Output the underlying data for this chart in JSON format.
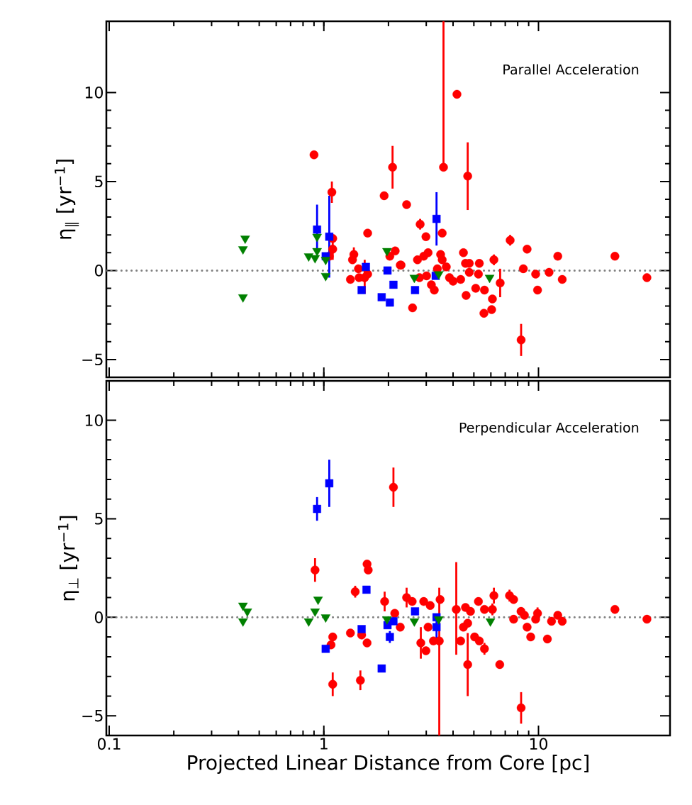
{
  "chart_data": [
    {
      "type": "scatter",
      "ylabel": "η$_{∥}$ [yr$^{−1}$]",
      "annotations": [
        "Parallel Acceleration"
      ],
      "log": "x",
      "tick_labels": "y",
      "xlim": [
        0.097,
        41
      ],
      "ylim": [
        -6,
        14
      ],
      "xticks": [
        0.1,
        1,
        10
      ],
      "yticks": [
        {
          "value": -5,
          "label": "−5"
        },
        0,
        5,
        10
      ],
      "ref_lines": [
        {
          "axis": "y",
          "value": 0,
          "color": "#808080",
          "line_style": "dotted"
        }
      ],
      "series": [
        {
          "color": "#ff0000",
          "marker": "circle",
          "x": [
            0.9,
            1.09,
            2.09,
            3.61,
            4.17,
            4.68,
            1.91,
            2.43,
            1.6,
            2.81,
            2.99,
            3.56,
            7.38,
            8.85,
            22.7,
            32,
            12.3,
            12.9,
            9.9,
            9.7,
            11.2,
            8.5,
            6.63,
            6.2,
            6.1,
            6.05,
            5.57,
            5.3,
            5.25,
            5.1,
            5.6,
            4.76,
            4.57,
            4.76,
            4.47,
            4.6,
            4.34,
            4.0,
            3.85,
            3.72,
            3.56,
            3.5,
            3.38,
            3.27,
            3.17,
            3.06,
            2.92,
            2.73,
            2.29,
            2.59,
            2.79,
            3.01,
            8.3,
            1.1,
            1.1,
            1.06,
            1.38,
            1.36,
            1.45,
            1.55,
            1.46,
            1.33,
            1.6,
            2.15,
            2.03,
            2.27
          ],
          "values": [
            6.5,
            4.4,
            5.8,
            5.8,
            9.9,
            5.3,
            4.2,
            3.7,
            2.1,
            2.6,
            1.9,
            2.1,
            1.7,
            1.2,
            0.8,
            -0.4,
            0.8,
            -0.5,
            -1.1,
            -0.2,
            -0.1,
            0.1,
            -0.7,
            0.6,
            -1.6,
            -2.2,
            -2.4,
            0.4,
            -0.2,
            -1.0,
            -1.1,
            0.4,
            0.4,
            -0.1,
            1.0,
            -1.4,
            -0.5,
            -0.6,
            -0.4,
            0.2,
            0.6,
            0.9,
            0.1,
            -1.1,
            -0.8,
            1.0,
            0.8,
            0.6,
            0.3,
            -2.1,
            -0.4,
            -0.3,
            -3.9,
            1.8,
            1.2,
            0.8,
            0.9,
            0.6,
            0.1,
            -0.4,
            -0.4,
            -0.5,
            -0.2,
            1.1,
            0.8,
            0.3
          ],
          "errors": [
            null,
            0.6,
            1.2,
            [
              5.8,
              14
            ],
            null,
            [
              3.4,
              7.2
            ],
            null,
            null,
            null,
            0.3,
            null,
            null,
            0.3,
            null,
            null,
            null,
            null,
            null,
            null,
            null,
            null,
            null,
            0.8,
            0.3,
            null,
            null,
            null,
            null,
            null,
            null,
            null,
            null,
            null,
            null,
            null,
            null,
            null,
            null,
            null,
            null,
            null,
            null,
            null,
            null,
            null,
            null,
            null,
            null,
            null,
            null,
            null,
            null,
            0.9,
            null,
            0.6,
            null,
            0.4,
            null,
            null,
            [
              -1.3,
              0.6
            ],
            null,
            null,
            null,
            null,
            null,
            null
          ]
        },
        {
          "color": "#0000ff",
          "marker": "square",
          "x": [
            0.93,
            1.06,
            1.02,
            1.57,
            1.5,
            1.98,
            2.11,
            1.86,
            2.03,
            2.66,
            3.35,
            3.32
          ],
          "values": [
            2.3,
            1.9,
            0.8,
            0.2,
            -1.1,
            0.0,
            -0.8,
            -1.5,
            -1.8,
            -1.1,
            2.9,
            -0.3
          ],
          "errors": [
            1.4,
            2.3,
            null,
            null,
            null,
            null,
            null,
            null,
            null,
            null,
            1.5,
            null
          ]
        },
        {
          "color": "#008000",
          "marker": "triangle",
          "x": [
            0.43,
            0.42,
            0.42,
            0.85,
            0.91,
            0.93,
            0.93,
            1.02,
            1.02,
            1.97,
            2.64,
            3.43,
            5.92
          ],
          "values": [
            1.8,
            1.2,
            -1.5,
            0.8,
            0.7,
            1.9,
            1.1,
            0.6,
            -0.3,
            1.1,
            -0.4,
            -0.2,
            -0.4
          ]
        }
      ]
    },
    {
      "type": "scatter",
      "xlabel": "Projected Linear Distance from Core [pc]",
      "ylabel": "η$_{⊥}$ [yr$^{−1}$]",
      "annotations": [
        "Perpendicular Acceleration"
      ],
      "log": "x",
      "xlim": [
        0.097,
        41
      ],
      "ylim": [
        -6,
        12
      ],
      "xticks": [
        0.1,
        1,
        10
      ],
      "yticks": [
        {
          "value": -5,
          "label": "−5"
        },
        0,
        5,
        10
      ],
      "ref_lines": [
        {
          "axis": "y",
          "value": 0,
          "color": "#808080",
          "line_style": "dotted"
        }
      ],
      "series": [
        {
          "color": "#ff0000",
          "marker": "circle",
          "x": [
            2.11,
            0.91,
            1.59,
            1.61,
            1.4,
            1.92,
            2.43,
            2.58,
            2.92,
            3.48,
            2.14,
            2.27,
            1.1,
            1.08,
            1.33,
            1.5,
            1.59,
            3.06,
            2.83,
            2.99,
            3.45,
            1.1,
            1.48,
            3.24,
            4.14,
            4.57,
            4.82,
            4.68,
            4.47,
            4.34,
            4.68,
            5.04,
            5.3,
            5.6,
            5.25,
            5.6,
            6.1,
            6.2,
            6.6,
            7.33,
            7.66,
            8.29,
            8.6,
            7.66,
            8.85,
            9.2,
            9.9,
            9.7,
            11.0,
            11.5,
            12.3,
            12.9,
            22.7,
            32,
            8.3,
            3.13
          ],
          "values": [
            6.6,
            2.4,
            2.7,
            2.4,
            1.3,
            0.8,
            1.0,
            0.8,
            0.8,
            0.9,
            0.2,
            -0.5,
            -1.0,
            -1.4,
            -0.8,
            -0.9,
            -1.3,
            -0.5,
            -1.3,
            -1.7,
            -1.2,
            -3.4,
            -3.2,
            -1.2,
            0.4,
            0.5,
            0.3,
            -0.3,
            -0.5,
            -1.2,
            -2.4,
            -1.0,
            -1.2,
            -1.6,
            0.8,
            0.4,
            0.4,
            1.1,
            -2.4,
            1.1,
            0.9,
            0.3,
            0.1,
            -0.1,
            -0.5,
            -1.0,
            0.2,
            -0.1,
            -1.1,
            -0.2,
            0.1,
            -0.2,
            0.4,
            -0.1,
            -4.6,
            0.6
          ],
          "errors": [
            1.0,
            0.6,
            null,
            null,
            0.3,
            0.5,
            0.5,
            null,
            null,
            null,
            null,
            null,
            null,
            null,
            null,
            null,
            null,
            null,
            0.8,
            null,
            [
              -6,
              1.5
            ],
            0.6,
            0.5,
            null,
            [
              -1.9,
              2.8
            ],
            null,
            null,
            null,
            null,
            null,
            1.6,
            null,
            null,
            0.3,
            null,
            null,
            0.3,
            0.4,
            null,
            0.3,
            null,
            null,
            null,
            null,
            null,
            null,
            0.3,
            null,
            null,
            null,
            null,
            null,
            null,
            null,
            0.8,
            null
          ]
        },
        {
          "color": "#0000ff",
          "marker": "square",
          "x": [
            1.06,
            0.93,
            1.58,
            1.5,
            1.02,
            1.86,
            1.98,
            2.11,
            2.03,
            2.66,
            3.35,
            3.35
          ],
          "values": [
            6.8,
            5.5,
            1.4,
            -0.6,
            -1.6,
            -2.6,
            -0.4,
            -0.2,
            -1.0,
            0.3,
            0.0,
            -0.5
          ],
          "errors": [
            1.2,
            0.6,
            null,
            null,
            null,
            null,
            null,
            null,
            0.3,
            null,
            null,
            0.6
          ]
        },
        {
          "color": "#008000",
          "marker": "triangle",
          "x": [
            0.42,
            0.44,
            0.42,
            0.94,
            0.91,
            0.85,
            1.02,
            1.97,
            2.64,
            3.43,
            5.97
          ],
          "values": [
            0.6,
            0.3,
            -0.2,
            0.9,
            0.3,
            -0.2,
            0.0,
            -0.1,
            -0.2,
            -0.1,
            -0.2
          ]
        }
      ]
    }
  ]
}
